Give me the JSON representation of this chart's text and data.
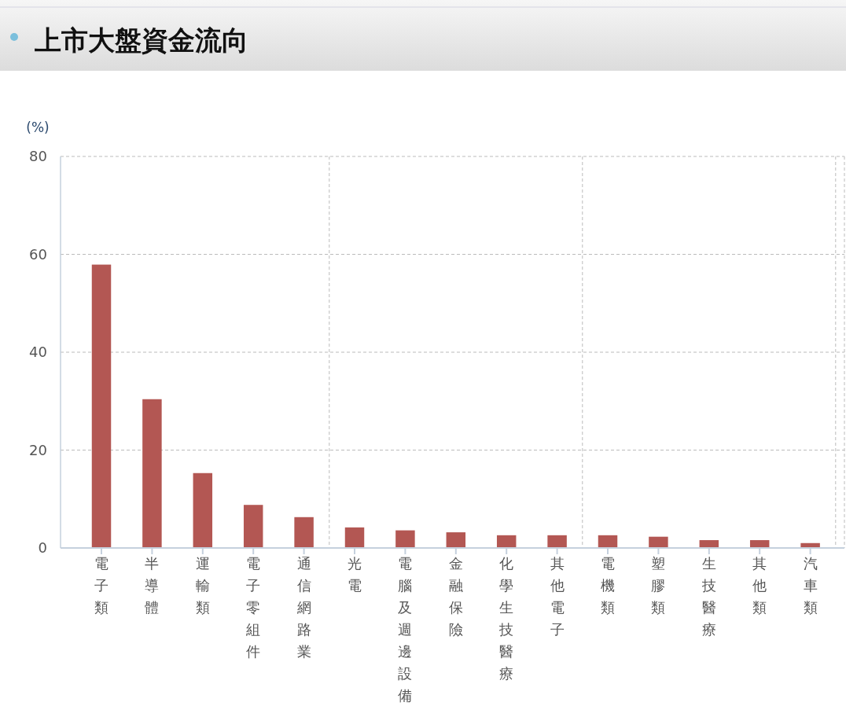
{
  "chart_data": {
    "type": "bar",
    "title": "上市大盤資金流向",
    "ylabel": "(%)",
    "categories": [
      "電子類",
      "半導體",
      "運輸類",
      "電子零組件",
      "通信網路業",
      "光電",
      "電腦及週邊設備",
      "金融保險",
      "化學生技醫療",
      "其他電子",
      "電機類",
      "塑膠類",
      "生技醫療",
      "其他類",
      "汽車類"
    ],
    "values": [
      57.9,
      30.4,
      15.3,
      8.8,
      6.3,
      4.2,
      3.6,
      3.2,
      2.6,
      2.6,
      2.6,
      2.3,
      1.6,
      1.6,
      1.0
    ],
    "color": "#b35753",
    "ylim": [
      0,
      80
    ],
    "yticks": [
      0,
      20,
      40,
      60,
      80
    ],
    "grid": true
  }
}
